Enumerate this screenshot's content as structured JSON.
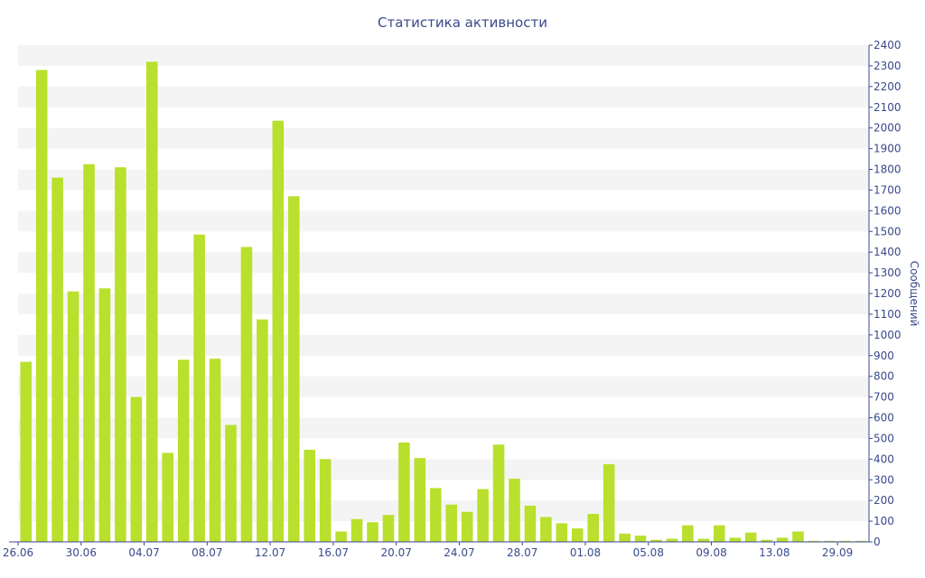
{
  "chart_data": {
    "type": "bar",
    "title": "Статистика активности",
    "xlabel": "",
    "ylabel": "Сообщений",
    "ylim": [
      0,
      2400
    ],
    "y_ticks": [
      0,
      100,
      200,
      300,
      400,
      500,
      600,
      700,
      800,
      900,
      1000,
      1100,
      1200,
      1300,
      1400,
      1500,
      1600,
      1700,
      1800,
      1900,
      2000,
      2100,
      2200,
      2300,
      2400
    ],
    "y_axis_side": "right",
    "grid": "horizontal alternating bands",
    "legend": "none",
    "bar_color": "#b8e02c",
    "text_color": "#3a4a8c",
    "band_color": "#f4f4f4",
    "x_tick_labels": [
      {
        "index": 0,
        "label": "26.06"
      },
      {
        "index": 4,
        "label": "30.06"
      },
      {
        "index": 8,
        "label": "04.07"
      },
      {
        "index": 12,
        "label": "08.07"
      },
      {
        "index": 16,
        "label": "12.07"
      },
      {
        "index": 20,
        "label": "16.07"
      },
      {
        "index": 24,
        "label": "20.07"
      },
      {
        "index": 28,
        "label": "24.07"
      },
      {
        "index": 32,
        "label": "28.07"
      },
      {
        "index": 36,
        "label": "01.08"
      },
      {
        "index": 40,
        "label": "05.08"
      },
      {
        "index": 44,
        "label": "09.08"
      },
      {
        "index": 48,
        "label": "13.08"
      },
      {
        "index": 52,
        "label": "29.09"
      }
    ],
    "values": [
      870,
      2280,
      1760,
      1210,
      1825,
      1225,
      1810,
      700,
      2320,
      430,
      880,
      1485,
      885,
      565,
      1425,
      1075,
      2035,
      1670,
      445,
      400,
      50,
      110,
      95,
      130,
      480,
      405,
      260,
      180,
      145,
      255,
      470,
      305,
      175,
      120,
      90,
      65,
      135,
      375,
      40,
      30,
      10,
      15,
      80,
      15,
      80,
      20,
      45,
      10,
      20,
      50,
      5,
      5,
      5,
      5
    ]
  }
}
